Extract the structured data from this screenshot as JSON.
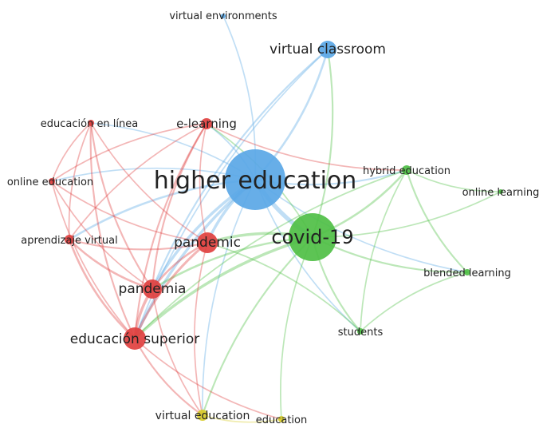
{
  "colors": {
    "red": "#e0403f",
    "blue": "#5aa7e6",
    "green": "#4fbf45",
    "yellow": "#d8cc2a"
  },
  "nodes": {
    "higher_education": {
      "label": "higher education",
      "cluster": "blue",
      "weight": 10
    },
    "covid_19": {
      "label": "covid-19",
      "cluster": "green",
      "weight": 8
    },
    "virtual_classroom": {
      "label": "virtual classroom",
      "cluster": "blue",
      "weight": 3
    },
    "virtual_environments": {
      "label": "virtual environments",
      "cluster": "blue",
      "weight": 1
    },
    "e_learning": {
      "label": "e-learning",
      "cluster": "red",
      "weight": 2
    },
    "educacion_en_linea": {
      "label": "educación en línea",
      "cluster": "red",
      "weight": 1
    },
    "online_education": {
      "label": "online education",
      "cluster": "red",
      "weight": 1
    },
    "aprendizaje_virtual": {
      "label": "aprendizaje virtual",
      "cluster": "red",
      "weight": 1.5
    },
    "pandemic": {
      "label": "pandemic",
      "cluster": "red",
      "weight": 4
    },
    "pandemia": {
      "label": "pandemia",
      "cluster": "red",
      "weight": 4
    },
    "educacion_superior": {
      "label": "educación superior",
      "cluster": "red",
      "weight": 5
    },
    "hybrid_education": {
      "label": "hybrid education",
      "cluster": "green",
      "weight": 1.5
    },
    "online_learning": {
      "label": "online learning",
      "cluster": "green",
      "weight": 1
    },
    "blended_learning": {
      "label": "blended learning",
      "cluster": "green",
      "weight": 1
    },
    "students": {
      "label": "students",
      "cluster": "green",
      "weight": 1
    },
    "virtual_education": {
      "label": "virtual education",
      "cluster": "yellow",
      "weight": 1.5
    },
    "education": {
      "label": "education",
      "cluster": "yellow",
      "weight": 1
    }
  },
  "links": [
    [
      "higher_education",
      "covid_19",
      5
    ],
    [
      "higher_education",
      "virtual_classroom",
      2
    ],
    [
      "higher_education",
      "virtual_environments",
      1
    ],
    [
      "higher_education",
      "pandemic",
      3
    ],
    [
      "higher_education",
      "pandemia",
      3
    ],
    [
      "higher_education",
      "educacion_superior",
      3
    ],
    [
      "higher_education",
      "e_learning",
      1
    ],
    [
      "higher_education",
      "educacion_en_linea",
      1
    ],
    [
      "higher_education",
      "online_education",
      1
    ],
    [
      "higher_education",
      "aprendizaje_virtual",
      2
    ],
    [
      "higher_education",
      "hybrid_education",
      1.5
    ],
    [
      "higher_education",
      "students",
      1
    ],
    [
      "higher_education",
      "blended_learning",
      1
    ],
    [
      "higher_education",
      "virtual_education",
      1
    ],
    [
      "covid_19",
      "pandemic",
      3
    ],
    [
      "covid_19",
      "pandemia",
      2
    ],
    [
      "covid_19",
      "educacion_superior",
      3
    ],
    [
      "covid_19",
      "hybrid_education",
      2
    ],
    [
      "covid_19",
      "online_learning",
      1
    ],
    [
      "covid_19",
      "blended_learning",
      1.5
    ],
    [
      "covid_19",
      "students",
      1.5
    ],
    [
      "covid_19",
      "virtual_education",
      1.5
    ],
    [
      "covid_19",
      "education",
      1
    ],
    [
      "covid_19",
      "virtual_classroom",
      1.5
    ],
    [
      "covid_19",
      "e_learning",
      1
    ],
    [
      "virtual_classroom",
      "pandemia",
      1.5
    ],
    [
      "virtual_classroom",
      "educacion_superior",
      1
    ],
    [
      "e_learning",
      "pandemia",
      1.5
    ],
    [
      "e_learning",
      "educacion_superior",
      1.5
    ],
    [
      "e_learning",
      "pandemic",
      1
    ],
    [
      "e_learning",
      "aprendizaje_virtual",
      1
    ],
    [
      "e_learning",
      "online_education",
      1
    ],
    [
      "e_learning",
      "hybrid_education",
      1
    ],
    [
      "educacion_en_linea",
      "pandemia",
      1.5
    ],
    [
      "educacion_en_linea",
      "educacion_superior",
      1.5
    ],
    [
      "educacion_en_linea",
      "pandemic",
      1
    ],
    [
      "educacion_en_linea",
      "aprendizaje_virtual",
      1
    ],
    [
      "educacion_en_linea",
      "online_education",
      1
    ],
    [
      "online_education",
      "pandemia",
      1
    ],
    [
      "online_education",
      "educacion_superior",
      1
    ],
    [
      "online_education",
      "pandemic",
      1
    ],
    [
      "aprendizaje_virtual",
      "pandemia",
      2
    ],
    [
      "aprendizaje_virtual",
      "educacion_superior",
      2
    ],
    [
      "aprendizaje_virtual",
      "pandemic",
      1.5
    ],
    [
      "pandemic",
      "pandemia",
      2
    ],
    [
      "pandemic",
      "educacion_superior",
      2.5
    ],
    [
      "pandemic",
      "virtual_education",
      1
    ],
    [
      "pandemia",
      "educacion_superior",
      3
    ],
    [
      "pandemia",
      "virtual_education",
      1
    ],
    [
      "educacion_superior",
      "virtual_education",
      1.5
    ],
    [
      "educacion_superior",
      "education",
      1
    ],
    [
      "hybrid_education",
      "blended_learning",
      1.5
    ],
    [
      "hybrid_education",
      "students",
      1
    ],
    [
      "hybrid_education",
      "online_learning",
      1
    ],
    [
      "hybrid_education",
      "educacion_superior",
      1
    ],
    [
      "blended_learning",
      "students",
      1
    ],
    [
      "students",
      "pandemic",
      1
    ],
    [
      "virtual_education",
      "education",
      1
    ]
  ]
}
